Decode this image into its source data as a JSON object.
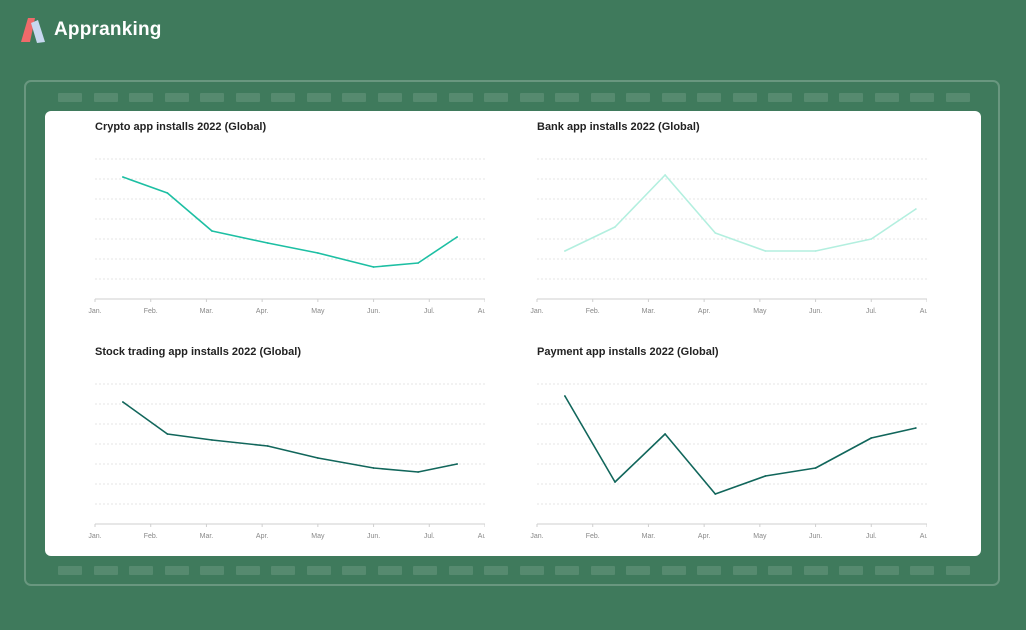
{
  "brand": {
    "name": "Appranking"
  },
  "colors": {
    "background": "#3f7a5c",
    "panel": "#ffffff"
  },
  "chart_data": [
    {
      "type": "line",
      "title": "Crypto app installs 2022 (Global)",
      "color": "#1dbfa3",
      "x_ticks": [
        "Jan.",
        "Feb.",
        "Mar.",
        "Apr.",
        "May",
        "Jun.",
        "Jul.",
        "Aug."
      ],
      "x": [
        0.5,
        1.3,
        2.1,
        3.1,
        4.0,
        5.0,
        5.8,
        6.5
      ],
      "values": [
        6.1,
        5.3,
        3.4,
        2.8,
        2.3,
        1.6,
        1.8,
        3.1
      ],
      "ylim": [
        0,
        7
      ],
      "grid": true
    },
    {
      "type": "line",
      "title": "Bank app installs 2022 (Global)",
      "color": "#b3efdf",
      "x_ticks": [
        "Jan.",
        "Feb.",
        "Mar.",
        "Apr.",
        "May",
        "Jun.",
        "Jul.",
        "Aug."
      ],
      "x": [
        0.5,
        1.4,
        2.3,
        3.2,
        4.1,
        5.0,
        6.0,
        6.8
      ],
      "values": [
        2.4,
        3.6,
        6.2,
        3.3,
        2.4,
        2.4,
        3.0,
        4.5
      ],
      "ylim": [
        0,
        7
      ],
      "grid": true
    },
    {
      "type": "line",
      "title": "Stock trading app installs 2022 (Global)",
      "color": "#11665b",
      "x_ticks": [
        "Jan.",
        "Feb.",
        "Mar.",
        "Apr.",
        "May",
        "Jun.",
        "Jul.",
        "Aug."
      ],
      "x": [
        0.5,
        1.3,
        2.1,
        3.1,
        4.0,
        5.0,
        5.8,
        6.5
      ],
      "values": [
        6.1,
        4.5,
        4.2,
        3.9,
        3.3,
        2.8,
        2.6,
        3.0
      ],
      "ylim": [
        0,
        7
      ],
      "grid": true
    },
    {
      "type": "line",
      "title": "Payment app installs 2022 (Global)",
      "color": "#11665b",
      "x_ticks": [
        "Jan.",
        "Feb.",
        "Mar.",
        "Apr.",
        "May",
        "Jun.",
        "Jul.",
        "Aug."
      ],
      "x": [
        0.5,
        1.4,
        2.3,
        3.2,
        4.1,
        5.0,
        6.0,
        6.8
      ],
      "values": [
        6.4,
        2.1,
        4.5,
        1.5,
        2.4,
        2.8,
        4.3,
        4.8
      ],
      "ylim": [
        0,
        7
      ],
      "grid": true
    }
  ]
}
